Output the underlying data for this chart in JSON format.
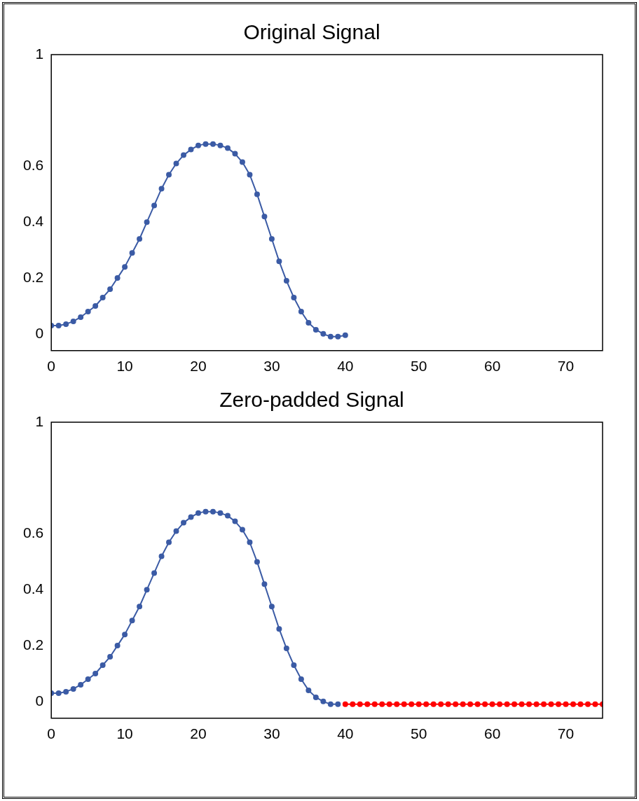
{
  "chart_data": [
    {
      "type": "line",
      "title": "Original Signal",
      "x": [
        0,
        1,
        2,
        3,
        4,
        5,
        6,
        7,
        8,
        9,
        10,
        11,
        12,
        13,
        14,
        15,
        16,
        17,
        18,
        19,
        20,
        21,
        22,
        23,
        24,
        25,
        26,
        27,
        28,
        29,
        30,
        31,
        32,
        33,
        34,
        35,
        36,
        37,
        38,
        39,
        40
      ],
      "series": [
        {
          "color": "#3b5ba5",
          "values": [
            0.03,
            0.03,
            0.035,
            0.045,
            0.06,
            0.08,
            0.1,
            0.13,
            0.16,
            0.2,
            0.24,
            0.29,
            0.34,
            0.4,
            0.46,
            0.52,
            0.57,
            0.61,
            0.64,
            0.66,
            0.675,
            0.68,
            0.68,
            0.675,
            0.665,
            0.645,
            0.615,
            0.57,
            0.5,
            0.42,
            0.34,
            0.26,
            0.19,
            0.13,
            0.08,
            0.04,
            0.015,
            0.0,
            -0.01,
            -0.01,
            -0.005
          ]
        }
      ],
      "xlim": [
        0,
        75
      ],
      "xticks": [
        0,
        10,
        20,
        30,
        40,
        50,
        60,
        70
      ],
      "ylim": [
        -0.06,
        1
      ],
      "yticks": [
        0,
        0.2,
        0.4,
        0.6,
        1
      ],
      "grid": false,
      "legend": false,
      "marker": "circle",
      "line_style": "solid"
    },
    {
      "type": "line",
      "title": "Zero-padded Signal",
      "x": [
        0,
        1,
        2,
        3,
        4,
        5,
        6,
        7,
        8,
        9,
        10,
        11,
        12,
        13,
        14,
        15,
        16,
        17,
        18,
        19,
        20,
        21,
        22,
        23,
        24,
        25,
        26,
        27,
        28,
        29,
        30,
        31,
        32,
        33,
        34,
        35,
        36,
        37,
        38,
        39
      ],
      "series": [
        {
          "color": "#3b5ba5",
          "values": [
            0.03,
            0.03,
            0.035,
            0.045,
            0.06,
            0.08,
            0.1,
            0.13,
            0.16,
            0.2,
            0.24,
            0.29,
            0.34,
            0.4,
            0.46,
            0.52,
            0.57,
            0.61,
            0.64,
            0.66,
            0.675,
            0.68,
            0.68,
            0.675,
            0.665,
            0.645,
            0.615,
            0.57,
            0.5,
            0.42,
            0.34,
            0.26,
            0.19,
            0.13,
            0.08,
            0.04,
            0.015,
            0.0,
            -0.01,
            -0.01
          ]
        },
        {
          "color": "#ff0000",
          "x": [
            40,
            41,
            42,
            43,
            44,
            45,
            46,
            47,
            48,
            49,
            50,
            51,
            52,
            53,
            54,
            55,
            56,
            57,
            58,
            59,
            60,
            61,
            62,
            63,
            64,
            65,
            66,
            67,
            68,
            69,
            70,
            71,
            72,
            73,
            74,
            75
          ],
          "values": [
            -0.01,
            -0.01,
            -0.01,
            -0.01,
            -0.01,
            -0.01,
            -0.01,
            -0.01,
            -0.01,
            -0.01,
            -0.01,
            -0.01,
            -0.01,
            -0.01,
            -0.01,
            -0.01,
            -0.01,
            -0.01,
            -0.01,
            -0.01,
            -0.01,
            -0.01,
            -0.01,
            -0.01,
            -0.01,
            -0.01,
            -0.01,
            -0.01,
            -0.01,
            -0.01,
            -0.01,
            -0.01,
            -0.01,
            -0.01,
            -0.01,
            -0.01
          ]
        }
      ],
      "xlim": [
        0,
        75
      ],
      "xticks": [
        0,
        10,
        20,
        30,
        40,
        50,
        60,
        70
      ],
      "ylim": [
        -0.06,
        1
      ],
      "yticks": [
        0,
        0.2,
        0.4,
        0.6,
        1
      ],
      "grid": false,
      "legend": false,
      "marker": "circle",
      "line_style": "solid"
    }
  ]
}
